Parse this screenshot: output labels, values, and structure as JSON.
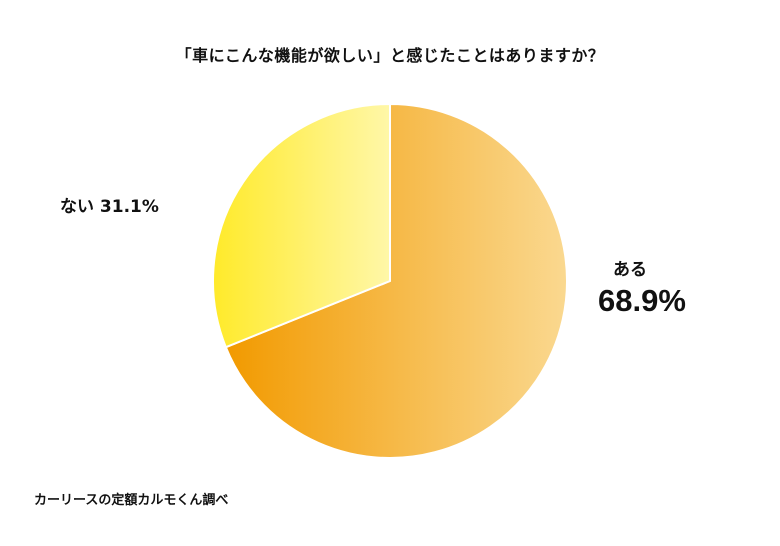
{
  "header": {
    "title": "「車にこんな機能が欲しい」と感じたことはありますか？"
  },
  "chart_data": {
    "type": "pie",
    "categories": [
      "ある",
      "ない"
    ],
    "values": [
      68.9,
      31.1
    ],
    "value_labels": [
      "68.9%",
      "31.1%"
    ],
    "title": "「車にこんな機能が欲しい」と感じたことはありますか？",
    "legend": "none",
    "start_angle": "12 o'clock",
    "direction": "clockwise",
    "colors": {
      "ある": [
        "#F29A00",
        "#FAD88F"
      ],
      "ない": [
        "#FFEA2A",
        "#FFF7A8"
      ]
    }
  },
  "labels": {
    "nai": "ない 31.1%",
    "aru_name": "ある",
    "aru_value": "68.9%"
  },
  "footer": {
    "source": "カーリースの定額カルモくん調べ"
  }
}
